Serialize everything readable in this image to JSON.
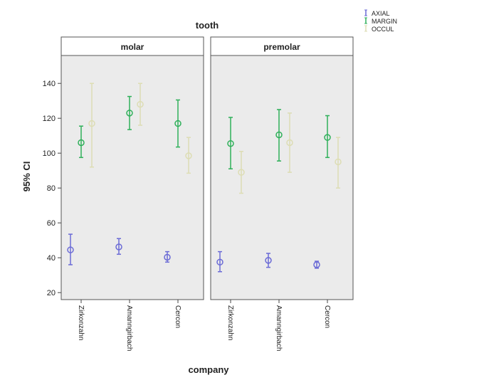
{
  "chart_data": {
    "type": "scatter",
    "title": "tooth",
    "xlabel": "company",
    "ylabel": "95% CI",
    "ylim": [
      16,
      156
    ],
    "yticks": [
      20,
      40,
      60,
      80,
      100,
      120,
      140
    ],
    "categories": [
      "Zirkonzahn",
      "Amanngirbach",
      "Cercon"
    ],
    "grid": false,
    "legend_position": "top-right",
    "panels": [
      {
        "name": "molar",
        "series": [
          {
            "name": "AXIAL",
            "color": "#6b6bd6",
            "mean": [
              44.5,
              46.2,
              40.3
            ],
            "lower": [
              36.0,
              42.0,
              37.5
            ],
            "upper": [
              53.5,
              51.0,
              43.5
            ]
          },
          {
            "name": "MARGIN",
            "color": "#2fb05a",
            "mean": [
              106.0,
              123.0,
              117.0
            ],
            "lower": [
              97.5,
              113.5,
              103.5
            ],
            "upper": [
              115.5,
              132.5,
              130.5
            ]
          },
          {
            "name": "OCCUL",
            "color": "#ddddb4",
            "mean": [
              117.0,
              128.0,
              98.5
            ],
            "lower": [
              92.0,
              116.0,
              88.5
            ],
            "upper": [
              140.0,
              140.0,
              109.0
            ]
          }
        ]
      },
      {
        "name": "premolar",
        "series": [
          {
            "name": "AXIAL",
            "color": "#6b6bd6",
            "mean": [
              37.5,
              38.5,
              36.0
            ],
            "lower": [
              32.0,
              34.5,
              34.0
            ],
            "upper": [
              43.5,
              42.5,
              38.0
            ]
          },
          {
            "name": "MARGIN",
            "color": "#2fb05a",
            "mean": [
              105.5,
              110.5,
              109.0
            ],
            "lower": [
              91.0,
              95.5,
              97.5
            ],
            "upper": [
              120.5,
              125.0,
              121.5
            ]
          },
          {
            "name": "OCCUL",
            "color": "#ddddb4",
            "mean": [
              89.0,
              106.0,
              95.0
            ],
            "lower": [
              77.0,
              89.0,
              80.0
            ],
            "upper": [
              101.0,
              123.0,
              109.0
            ]
          }
        ]
      }
    ]
  }
}
